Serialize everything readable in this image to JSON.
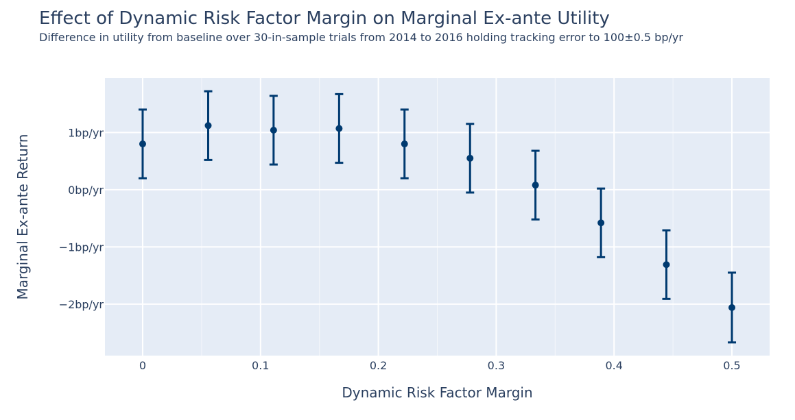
{
  "chart_data": {
    "type": "scatter",
    "title": "Effect of Dynamic Risk Factor Margin on Marginal Ex-ante Utility",
    "subtitle": "Difference in utility from baseline over 30-in-sample trials from 2014 to 2016 holding tracking error to 100±0.5 bp/yr",
    "xlabel": "Dynamic Risk Factor Margin",
    "ylabel": "Marginal Ex-ante Return",
    "xlim": [
      -0.032,
      0.532
    ],
    "ylim": [
      -2.9,
      1.95
    ],
    "x_ticks": [
      0,
      0.1,
      0.2,
      0.3,
      0.4,
      0.5
    ],
    "x_tick_labels": [
      "0",
      "0.1",
      "0.2",
      "0.3",
      "0.4",
      "0.5"
    ],
    "y_ticks": [
      1,
      0,
      -1,
      -2
    ],
    "y_tick_labels": [
      "1bp/yr",
      "0bp/yr",
      "−1bp/yr",
      "−2bp/yr"
    ],
    "grid": true,
    "legend": "none",
    "marker_color": "#003a70",
    "plot_background": "#e5ecf6",
    "points": [
      {
        "x": 0.0,
        "y": 0.8,
        "error": 0.6
      },
      {
        "x": 0.0556,
        "y": 1.12,
        "error": 0.6
      },
      {
        "x": 0.1111,
        "y": 1.04,
        "error": 0.6
      },
      {
        "x": 0.1667,
        "y": 1.07,
        "error": 0.6
      },
      {
        "x": 0.2222,
        "y": 0.8,
        "error": 0.6
      },
      {
        "x": 0.2778,
        "y": 0.55,
        "error": 0.6
      },
      {
        "x": 0.3333,
        "y": 0.08,
        "error": 0.6
      },
      {
        "x": 0.3889,
        "y": -0.58,
        "error": 0.6
      },
      {
        "x": 0.4444,
        "y": -1.31,
        "error": 0.6
      },
      {
        "x": 0.5,
        "y": -2.06,
        "error": 0.61
      }
    ]
  }
}
